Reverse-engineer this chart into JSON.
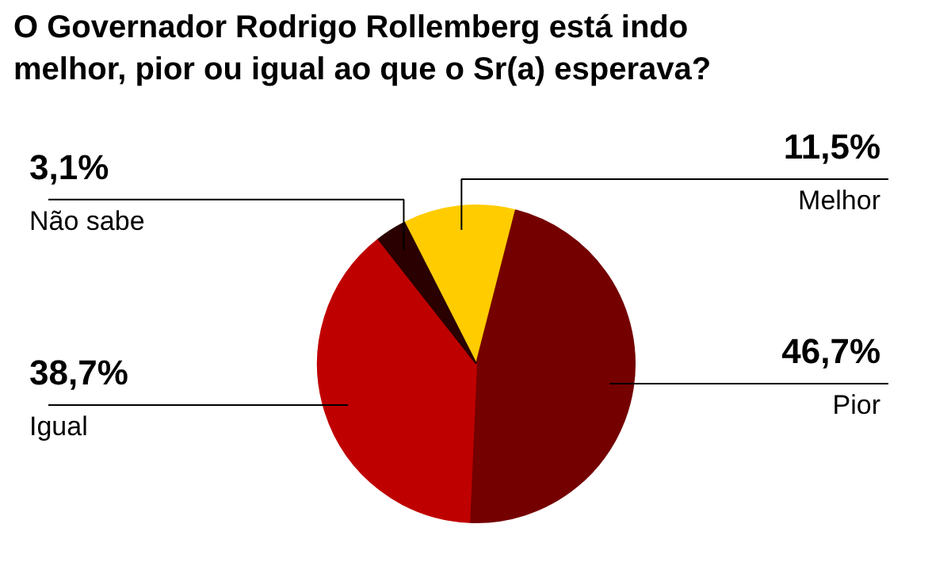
{
  "chart_data": {
    "type": "pie",
    "title": "O Governador Rodrigo Rollemberg está indo melhor, pior ou igual ao que o Sr(a) esperava?",
    "categories": [
      "Melhor",
      "Pior",
      "Igual",
      "Não sabe"
    ],
    "values": [
      11.5,
      46.7,
      38.7,
      3.1
    ],
    "value_labels": [
      "11,5%",
      "46,7%",
      "38,7%",
      "3,1%"
    ],
    "colors": [
      "#ffcc00",
      "#750000",
      "#bf0000",
      "#2a0000"
    ]
  }
}
